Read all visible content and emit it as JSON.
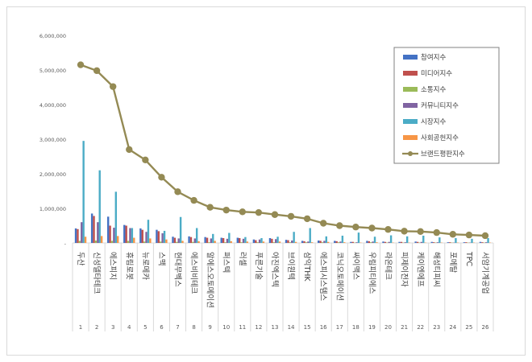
{
  "chart_data": {
    "type": "bar",
    "title": "",
    "xlabel": "",
    "ylabel": "",
    "ylim": [
      0,
      6000000
    ],
    "yticks": [
      "-",
      "1,000,000",
      "2,000,000",
      "3,000,000",
      "4,000,000",
      "5,000,000",
      "6,000,000"
    ],
    "grid": false,
    "legend_position": "right",
    "categories": [
      "두산",
      "신성델타테크",
      "에스피지",
      "휴림로봇",
      "뉴로메카",
      "스맥",
      "현대무벡스",
      "에스비비테크",
      "알에스오토메이션",
      "퍼스텍",
      "러셀",
      "푸른기술",
      "아진엑스텍",
      "브이원텍",
      "삼익THK",
      "에스피시스템스",
      "코닉오토메이션",
      "싸이맥스",
      "우림피티에스",
      "라온테크",
      "피제이전자",
      "케이엔에프",
      "해성티피씨",
      "포메탈",
      "TPC",
      "서암기계공업"
    ],
    "ranks": [
      "1",
      "2",
      "3",
      "4",
      "5",
      "6",
      "7",
      "8",
      "9",
      "10",
      "11",
      "12",
      "13",
      "14",
      "15",
      "16",
      "17",
      "18",
      "19",
      "20",
      "21",
      "22",
      "23",
      "24",
      "25",
      "26"
    ],
    "series": [
      {
        "name": "참여지수",
        "type": "bar",
        "color": "#4472c4",
        "values": [
          420000,
          850000,
          760000,
          520000,
          420000,
          380000,
          180000,
          190000,
          170000,
          150000,
          150000,
          100000,
          140000,
          90000,
          60000,
          70000,
          60000,
          30000,
          60000,
          40000,
          30000,
          40000,
          30000,
          20000,
          20000,
          30000
        ]
      },
      {
        "name": "미디어지수",
        "type": "bar",
        "color": "#c0504d",
        "values": [
          400000,
          780000,
          500000,
          500000,
          380000,
          340000,
          150000,
          170000,
          150000,
          140000,
          140000,
          80000,
          120000,
          80000,
          50000,
          60000,
          50000,
          30000,
          50000,
          30000,
          30000,
          30000,
          20000,
          20000,
          20000,
          20000
        ]
      },
      {
        "name": "소통지수",
        "type": "bar",
        "color": "#9bbb59",
        "values": [
          60000,
          70000,
          60000,
          60000,
          40000,
          40000,
          30000,
          30000,
          20000,
          20000,
          20000,
          20000,
          20000,
          20000,
          20000,
          20000,
          20000,
          10000,
          20000,
          10000,
          10000,
          10000,
          10000,
          10000,
          10000,
          10000
        ]
      },
      {
        "name": "커뮤니티지수",
        "type": "bar",
        "color": "#8064a2",
        "values": [
          600000,
          600000,
          440000,
          430000,
          320000,
          280000,
          130000,
          130000,
          130000,
          120000,
          120000,
          100000,
          110000,
          70000,
          40000,
          60000,
          40000,
          20000,
          40000,
          30000,
          20000,
          30000,
          20000,
          10000,
          10000,
          20000
        ]
      },
      {
        "name": "시장지수",
        "type": "bar",
        "color": "#4bacc6",
        "values": [
          2950000,
          2100000,
          1480000,
          430000,
          670000,
          350000,
          750000,
          430000,
          260000,
          290000,
          170000,
          140000,
          180000,
          320000,
          430000,
          190000,
          210000,
          300000,
          180000,
          220000,
          190000,
          210000,
          160000,
          140000,
          120000,
          140000
        ]
      },
      {
        "name": "사회공헌지수",
        "type": "bar",
        "color": "#f79646",
        "values": [
          180000,
          200000,
          200000,
          150000,
          130000,
          100000,
          60000,
          50000,
          60000,
          50000,
          40000,
          40000,
          40000,
          30000,
          20000,
          30000,
          20000,
          10000,
          20000,
          10000,
          10000,
          10000,
          10000,
          10000,
          10000,
          10000
        ]
      },
      {
        "name": "브랜드평판지수",
        "type": "line",
        "color": "#948a54",
        "values": [
          5150000,
          4980000,
          4520000,
          2700000,
          2400000,
          1900000,
          1480000,
          1230000,
          1030000,
          950000,
          900000,
          880000,
          820000,
          770000,
          700000,
          570000,
          500000,
          460000,
          430000,
          390000,
          340000,
          330000,
          300000,
          250000,
          230000,
          210000
        ]
      }
    ]
  }
}
